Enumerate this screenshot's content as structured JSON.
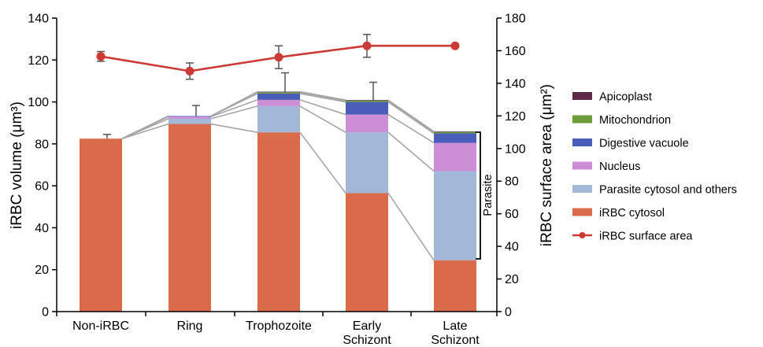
{
  "chart_data": {
    "type": "bar",
    "stacked": true,
    "categories": [
      "Non-iRBC",
      "Ring",
      "Trophozoite",
      "Early Schizont",
      "Late Schizont"
    ],
    "category_lines": [
      [
        "Non-iRBC"
      ],
      [
        "Ring"
      ],
      [
        "Trophozoite"
      ],
      [
        "Early",
        "Schizont"
      ],
      [
        "Late",
        "Schizont"
      ]
    ],
    "ylabel": "iRBC volume (μm³)",
    "ylim": [
      0,
      140
    ],
    "yticks": [
      "0",
      "20",
      "40",
      "60",
      "80",
      "100",
      "120",
      "140"
    ],
    "y2label": "iRBC surface area (μm²)",
    "y2lim": [
      0,
      180
    ],
    "y2ticks": [
      "0",
      "20",
      "40",
      "60",
      "80",
      "100",
      "120",
      "140",
      "160",
      "180"
    ],
    "series": [
      {
        "name": "iRBC cytosol",
        "color": "#d96b4a",
        "values": [
          82.5,
          89.5,
          85.5,
          56.5,
          24.5
        ]
      },
      {
        "name": "Parasite cytosol and others",
        "color": "#a3b7d9",
        "values": [
          0,
          2.5,
          12.5,
          29.0,
          42.5
        ]
      },
      {
        "name": "Nucleus",
        "color": "#cc8fd6",
        "values": [
          0,
          1.0,
          3.0,
          8.5,
          13.5
        ]
      },
      {
        "name": "Digestive vacuole",
        "color": "#4a5db8",
        "values": [
          0,
          0.3,
          3.0,
          6.0,
          4.5
        ]
      },
      {
        "name": "Mitochondrion",
        "color": "#6b9e3a",
        "values": [
          0,
          0,
          0.6,
          0.6,
          0.6
        ]
      },
      {
        "name": "Apicoplast",
        "color": "#5e2a4a",
        "values": [
          0,
          0,
          0.3,
          0.3,
          0.3
        ]
      }
    ],
    "volume_error": [
      2.0,
      5.0,
      9.0,
      8.5,
      0
    ],
    "line_series": {
      "name": "iRBC surface area",
      "color": "#cc3a35",
      "axis": "right",
      "values": [
        156.5,
        147.5,
        156,
        163,
        163
      ],
      "errors": [
        3,
        5,
        7,
        7,
        0
      ]
    },
    "legend_order": [
      "Apicoplast",
      "Mitochondrion",
      "Digestive vacuole",
      "Nucleus",
      "Parasite cytosol and others",
      "iRBC cytosol",
      "iRBC surface area"
    ],
    "bracket_label": "Parasite",
    "grid": false,
    "legend_position": "right"
  }
}
